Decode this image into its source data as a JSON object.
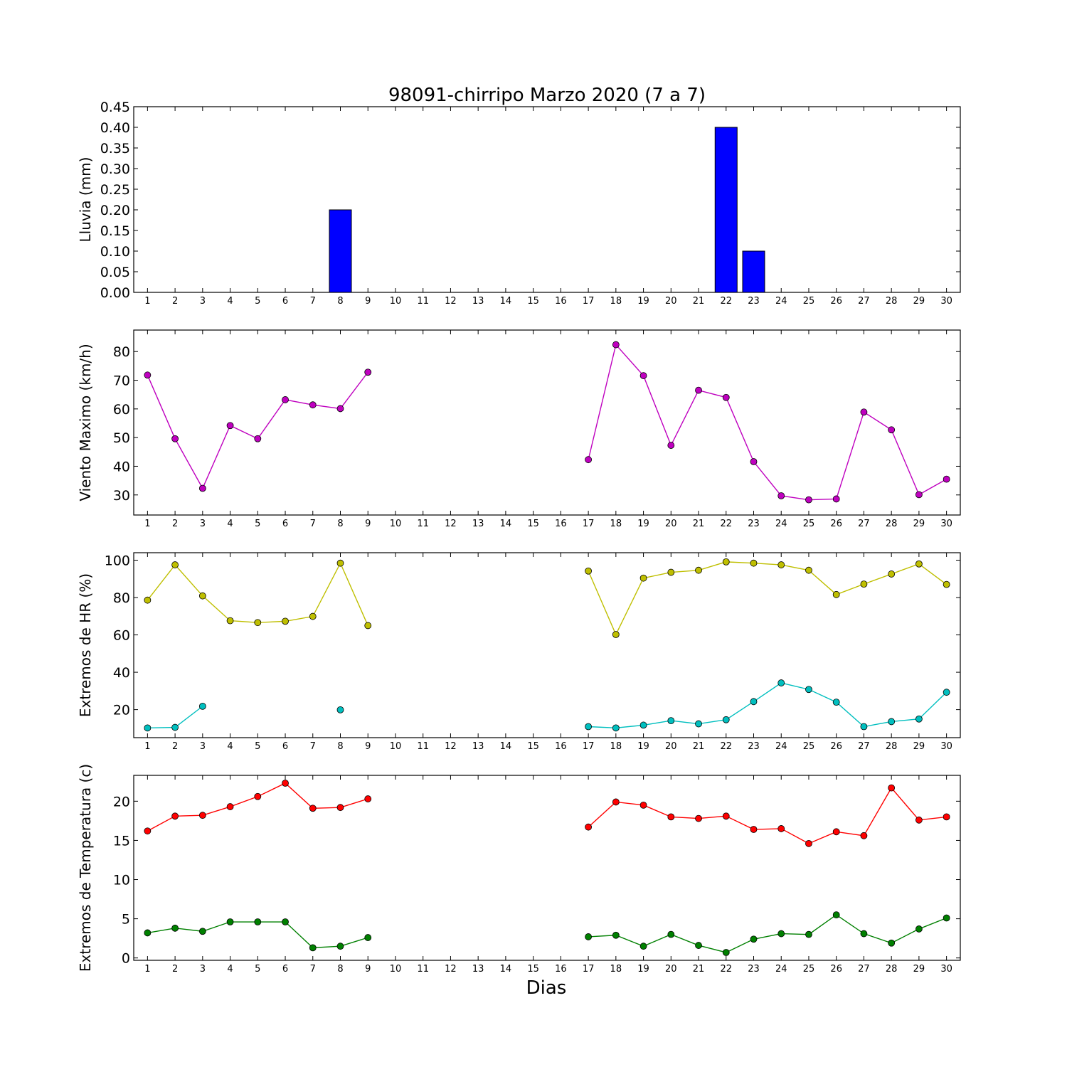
{
  "figure": {
    "title": "98091-chirripo Marzo 2020  (7 a 7)",
    "xlabel": "Dias"
  },
  "chart_data": [
    {
      "type": "bar",
      "ylabel": "Lluvia (mm)",
      "ylim": [
        0,
        0.45
      ],
      "yticks": [
        0.0,
        0.05,
        0.1,
        0.15,
        0.2,
        0.25,
        0.3,
        0.35,
        0.4,
        0.45
      ],
      "ytick_decimals": 2,
      "xlim": [
        0.5,
        30.5
      ],
      "x": [
        1,
        2,
        3,
        4,
        5,
        6,
        7,
        8,
        9,
        10,
        11,
        12,
        13,
        14,
        15,
        16,
        17,
        18,
        19,
        20,
        21,
        22,
        23,
        24,
        25,
        26,
        27,
        28,
        29,
        30
      ],
      "series": [
        {
          "color": "#0000ff",
          "values": [
            0,
            0,
            0,
            0,
            0,
            0,
            0,
            0.2,
            0,
            0,
            0,
            0,
            0,
            0,
            0,
            0,
            0,
            0,
            0,
            0,
            0,
            0.4,
            0.1,
            0,
            0,
            0,
            0,
            0,
            0,
            0
          ]
        }
      ]
    },
    {
      "type": "line",
      "ylabel": "Viento Maximo (km/h)",
      "ylim": [
        23,
        87.5
      ],
      "yticks": [
        30,
        40,
        50,
        60,
        70,
        80
      ],
      "ytick_decimals": 0,
      "xlim": [
        0.5,
        30.5
      ],
      "x": [
        1,
        2,
        3,
        4,
        5,
        6,
        7,
        8,
        9,
        10,
        11,
        12,
        13,
        14,
        15,
        16,
        17,
        18,
        19,
        20,
        21,
        22,
        23,
        24,
        25,
        26,
        27,
        28,
        29,
        30
      ],
      "series": [
        {
          "color": "#bf00bf",
          "values": [
            71.8,
            49.6,
            32.3,
            54.2,
            49.6,
            63.2,
            61.4,
            60.1,
            72.8,
            null,
            null,
            null,
            null,
            null,
            null,
            null,
            42.3,
            82.4,
            71.6,
            47.3,
            66.5,
            64.0,
            41.6,
            29.7,
            28.3,
            28.6,
            58.9,
            52.7,
            30.1,
            35.5
          ]
        }
      ]
    },
    {
      "type": "line",
      "ylabel": "Extremos de HR (%)",
      "ylim": [
        5,
        104
      ],
      "yticks": [
        20,
        40,
        60,
        80,
        100
      ],
      "ytick_decimals": 0,
      "xlim": [
        0.5,
        30.5
      ],
      "x": [
        1,
        2,
        3,
        4,
        5,
        6,
        7,
        8,
        9,
        10,
        11,
        12,
        13,
        14,
        15,
        16,
        17,
        18,
        19,
        20,
        21,
        22,
        23,
        24,
        25,
        26,
        27,
        28,
        29,
        30
      ],
      "series": [
        {
          "color": "#bfbf00",
          "values": [
            78.6,
            97.5,
            80.9,
            67.6,
            66.6,
            67.3,
            69.9,
            98.4,
            65.0,
            null,
            null,
            null,
            null,
            null,
            null,
            null,
            94.2,
            60.2,
            90.4,
            93.5,
            94.6,
            99.1,
            98.4,
            97.5,
            94.6,
            81.6,
            87.2,
            92.6,
            98.0,
            87.0
          ]
        },
        {
          "color": "#00bfbf",
          "values": [
            10.2,
            10.5,
            21.8,
            null,
            null,
            null,
            null,
            19.9,
            null,
            null,
            null,
            null,
            null,
            null,
            null,
            null,
            10.9,
            10.2,
            11.7,
            14.1,
            12.4,
            14.6,
            24.3,
            34.3,
            30.8,
            24.0,
            10.9,
            13.6,
            15.0,
            29.3
          ]
        }
      ]
    },
    {
      "type": "line",
      "ylabel": "Extremos de Temperatura (c)",
      "ylim": [
        -0.3,
        23.3
      ],
      "yticks": [
        0,
        5,
        10,
        15,
        20
      ],
      "ytick_decimals": 0,
      "xlim": [
        0.5,
        30.5
      ],
      "x": [
        1,
        2,
        3,
        4,
        5,
        6,
        7,
        8,
        9,
        10,
        11,
        12,
        13,
        14,
        15,
        16,
        17,
        18,
        19,
        20,
        21,
        22,
        23,
        24,
        25,
        26,
        27,
        28,
        29,
        30
      ],
      "series": [
        {
          "color": "#ff0000",
          "values": [
            16.2,
            18.1,
            18.2,
            19.3,
            20.6,
            22.3,
            19.1,
            19.2,
            20.3,
            null,
            null,
            null,
            null,
            null,
            null,
            null,
            16.7,
            19.9,
            19.5,
            18.0,
            17.8,
            18.1,
            16.4,
            16.5,
            14.6,
            16.1,
            15.6,
            21.7,
            17.6,
            18.0
          ]
        },
        {
          "color": "#008000",
          "values": [
            3.2,
            3.8,
            3.4,
            4.6,
            4.6,
            4.6,
            1.3,
            1.5,
            2.6,
            null,
            null,
            null,
            null,
            null,
            null,
            null,
            2.7,
            2.9,
            1.5,
            3.0,
            1.6,
            0.7,
            2.4,
            3.1,
            3.0,
            5.5,
            3.1,
            1.9,
            3.7,
            5.1
          ]
        }
      ]
    }
  ]
}
